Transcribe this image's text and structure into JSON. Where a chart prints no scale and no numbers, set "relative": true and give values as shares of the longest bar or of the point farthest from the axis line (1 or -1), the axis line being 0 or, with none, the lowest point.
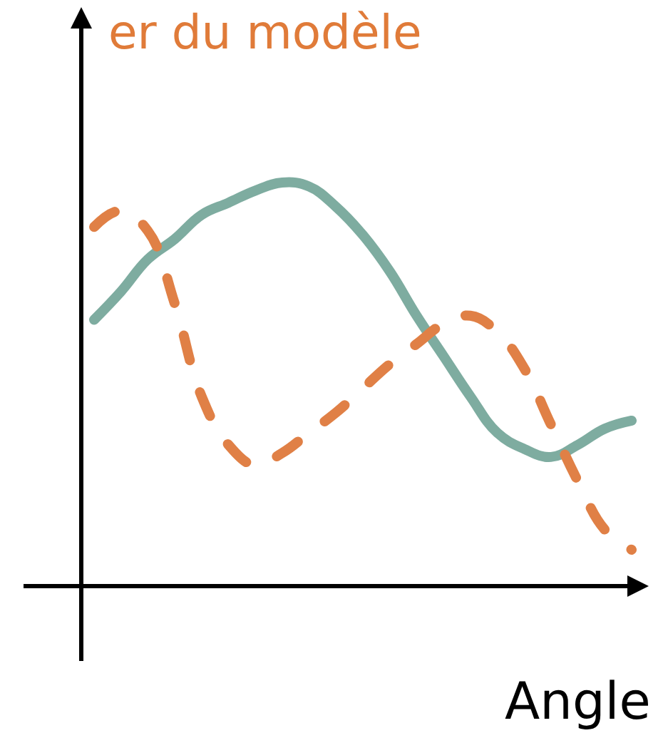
{
  "chart_data": {
    "type": "line",
    "relative": true,
    "xlabel": "Angle",
    "ylabel": "er du modèle",
    "categories": [
      null,
      null,
      null,
      null,
      null,
      null,
      null,
      null,
      null,
      null,
      null,
      null,
      null,
      null,
      null,
      null,
      null,
      null,
      null,
      null,
      null
    ],
    "series": [
      {
        "color": "#7eaca0",
        "line_style": "solid",
        "values": [
          0.66,
          0.73,
          0.81,
          0.86,
          0.92,
          0.95,
          0.98,
          1.0,
          0.99,
          0.94,
          0.87,
          0.78,
          0.67,
          0.57,
          0.47,
          0.38,
          0.34,
          0.32,
          0.35,
          0.39,
          0.41
        ]
      },
      {
        "color": "#e08046",
        "line_style": "dashed",
        "values": [
          0.89,
          0.93,
          0.88,
          0.7,
          0.47,
          0.35,
          0.3,
          0.33,
          0.38,
          0.43,
          0.49,
          0.55,
          0.6,
          0.65,
          0.67,
          0.63,
          0.54,
          0.4,
          0.26,
          0.14,
          0.09
        ]
      }
    ]
  }
}
